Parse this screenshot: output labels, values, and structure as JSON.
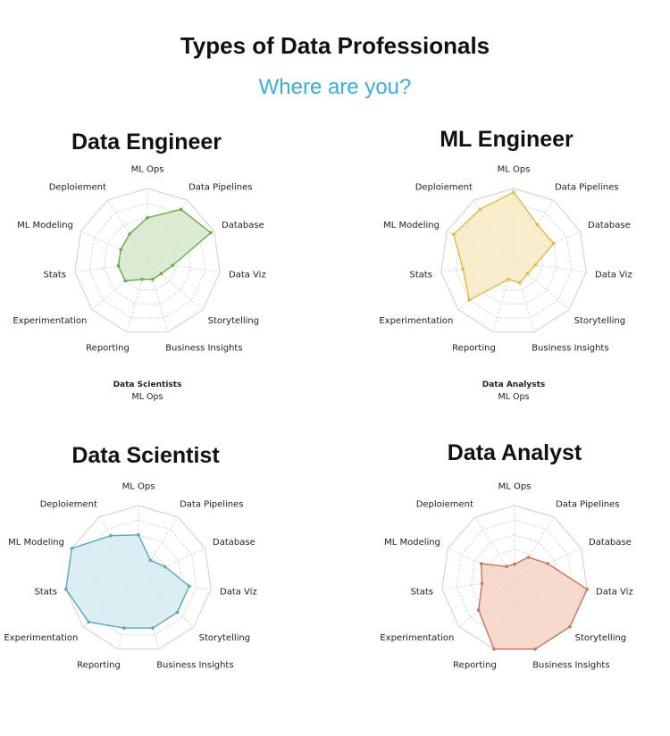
{
  "header": {
    "title": "Types of Data Professionals",
    "subtitle": "Where are you?"
  },
  "axes": [
    "ML Ops",
    "Data Pipelines",
    "Database",
    "Data Viz",
    "Storytelling",
    "Business Insights",
    "Reporting",
    "Experimentation",
    "Stats",
    "ML Modeling",
    "Deploiement"
  ],
  "captions": {
    "left_bold": "Data Scientists",
    "left_sub": "ML Ops",
    "right_bold": "Data Analysts",
    "right_sub": "ML Ops"
  },
  "chart_data": [
    {
      "type": "radar",
      "title": "Data Engineer",
      "color": "#6aa84f",
      "fill": "#d6e9cc",
      "categories": [
        "ML Ops",
        "Data Pipelines",
        "Database",
        "Data Viz",
        "Storytelling",
        "Business Insights",
        "Reporting",
        "Experimentation",
        "Stats",
        "ML Modeling",
        "Deploiement"
      ],
      "values": [
        0.6,
        0.85,
        0.95,
        0.35,
        0.25,
        0.25,
        0.25,
        0.4,
        0.4,
        0.4,
        0.45
      ],
      "range": [
        0,
        1
      ]
    },
    {
      "type": "radar",
      "title": "ML Engineer",
      "color": "#e0b84a",
      "fill": "#f7ebc4",
      "categories": [
        "ML Ops",
        "Data Pipelines",
        "Database",
        "Data Viz",
        "Storytelling",
        "Business Insights",
        "Reporting",
        "Experimentation",
        "Stats",
        "ML Modeling",
        "Deploiement"
      ],
      "values": [
        0.95,
        0.6,
        0.6,
        0.3,
        0.25,
        0.3,
        0.25,
        0.8,
        0.7,
        0.9,
        0.85
      ],
      "range": [
        0,
        1
      ]
    },
    {
      "type": "radar",
      "title": "Data Scientist",
      "color": "#5aa9b8",
      "fill": "#d7eaf2",
      "categories": [
        "ML Ops",
        "Data Pipelines",
        "Database",
        "Data Viz",
        "Storytelling",
        "Business Insights",
        "Reporting",
        "Experimentation",
        "Stats",
        "ML Modeling",
        "Deploiement"
      ],
      "values": [
        0.6,
        0.3,
        0.4,
        0.7,
        0.7,
        0.7,
        0.7,
        0.9,
        1.0,
        1.0,
        0.7
      ],
      "range": [
        0,
        1
      ]
    },
    {
      "type": "radar",
      "title": "Data Analyst",
      "color": "#c8765a",
      "fill": "#f6d3c4",
      "categories": [
        "ML Ops",
        "Data Pipelines",
        "Database",
        "Data Viz",
        "Storytelling",
        "Business Insights",
        "Reporting",
        "Experimentation",
        "Stats",
        "ML Modeling",
        "Deploiement"
      ],
      "values": [
        0.2,
        0.35,
        0.5,
        1.0,
        1.0,
        1.0,
        1.0,
        0.65,
        0.45,
        0.5,
        0.2
      ],
      "range": [
        0,
        1
      ]
    }
  ]
}
